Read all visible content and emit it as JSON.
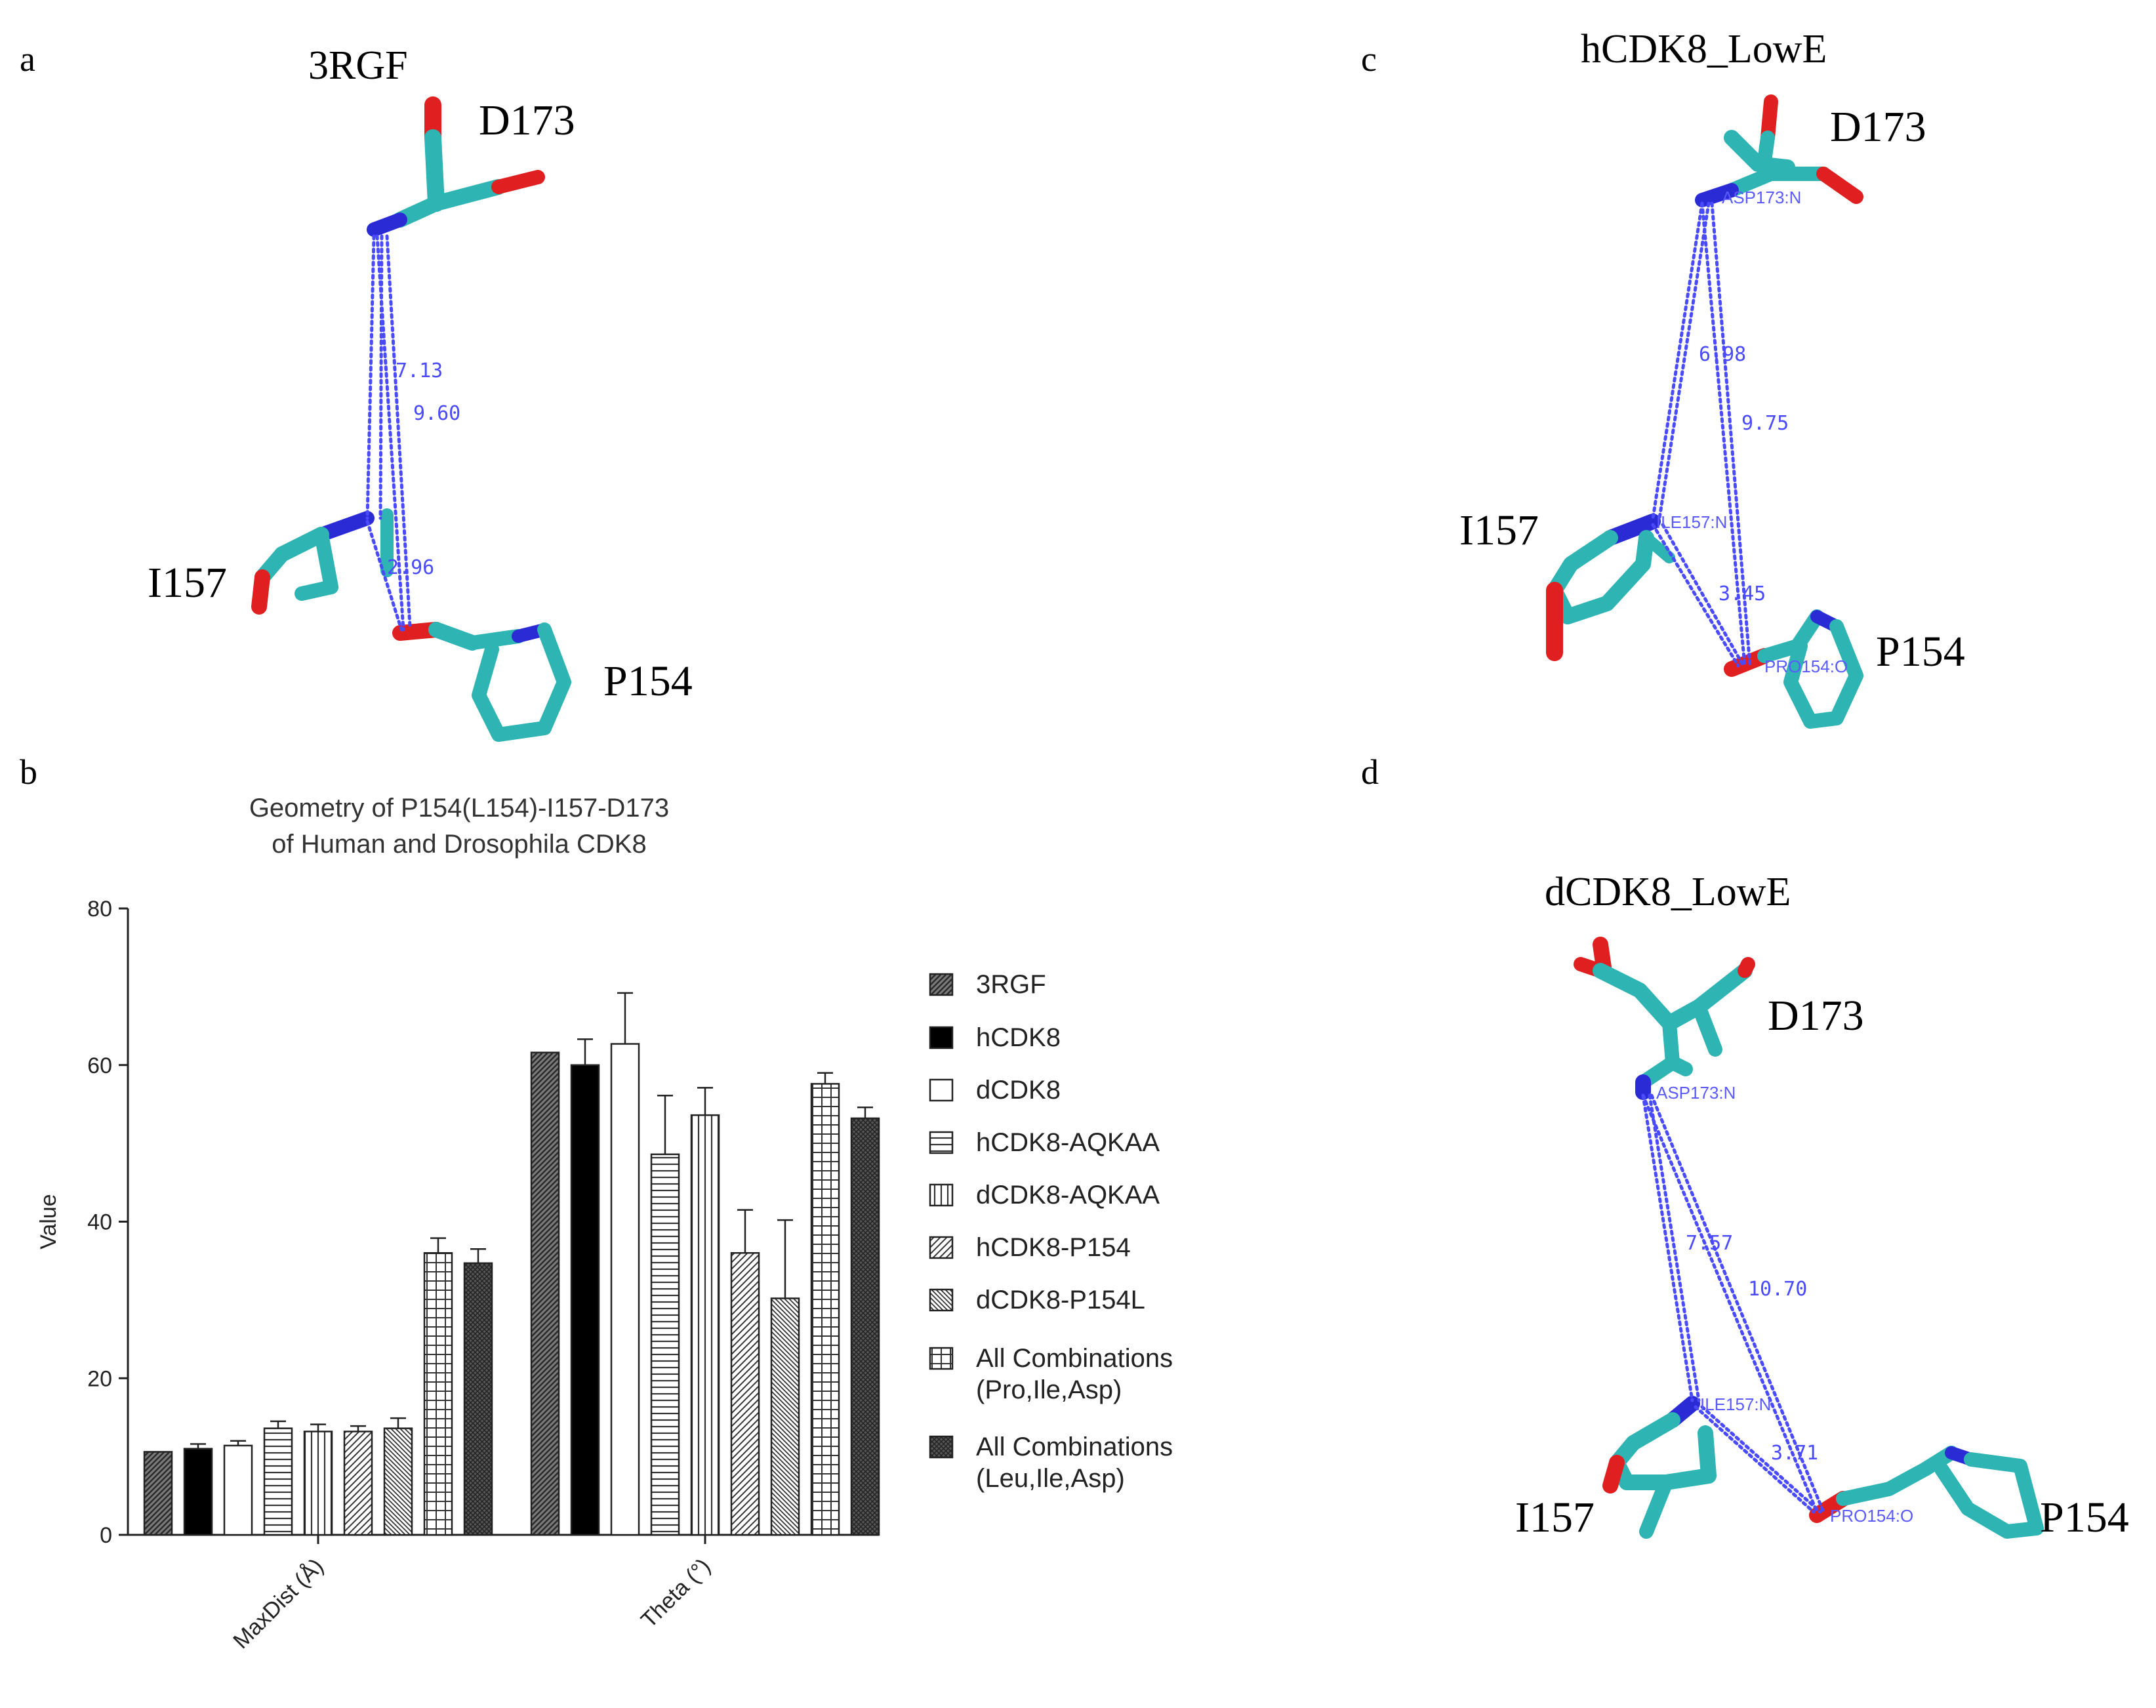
{
  "panels": {
    "a": {
      "letter": "a",
      "title": "3RGF",
      "residues": {
        "d173": "D173",
        "i157": "I157",
        "p154": "P154"
      },
      "distances": [
        "7.13",
        "9.60",
        "2.96"
      ]
    },
    "b": {
      "letter": "b"
    },
    "c": {
      "letter": "c",
      "title": "hCDK8_LowE",
      "residues": {
        "d173": "D173",
        "i157": "I157",
        "p154": "P154"
      },
      "distances": [
        "6.98",
        "9.75",
        "3.45"
      ],
      "atoms": [
        "ASP173:N",
        "ILE157:N",
        "PRO154:O"
      ]
    },
    "d": {
      "letter": "d",
      "title": "dCDK8_LowE",
      "residues": {
        "d173": "D173",
        "i157": "I157",
        "p154": "P154"
      },
      "distances": [
        "7.57",
        "10.70",
        "3.71"
      ],
      "atoms": [
        "ASP173:N",
        "ILE157:N",
        "PRO154:O"
      ]
    }
  },
  "colors": {
    "carbon": "#2fb4b4",
    "nitrogen": "#2b2bd6",
    "oxygen": "#e02020",
    "dash": "#4a4aff"
  },
  "chart_data": {
    "type": "bar",
    "title": "Geometry of P154(L154)-I157-D173",
    "subtitle": "of Human and Drosophila CDK8",
    "xlabel": "",
    "ylabel": "Value",
    "ylim": [
      0,
      80
    ],
    "yticks": [
      "0",
      "20",
      "40",
      "60",
      "80"
    ],
    "categories": [
      "MaxDist (Å)",
      "Theta (°)"
    ],
    "series": [
      {
        "name": "3RGF",
        "values": [
          10.6,
          61.6
        ],
        "errors": [
          0,
          0
        ],
        "pattern": "dark-diag"
      },
      {
        "name": "hCDK8",
        "values": [
          11.0,
          60.0
        ],
        "errors": [
          0.6,
          3.3
        ],
        "pattern": "black"
      },
      {
        "name": "dCDK8",
        "values": [
          11.4,
          62.7
        ],
        "errors": [
          0.6,
          6.5
        ],
        "pattern": "white"
      },
      {
        "name": "hCDK8-AQKAA",
        "values": [
          13.6,
          48.6
        ],
        "errors": [
          0.9,
          7.5
        ],
        "pattern": "hlines"
      },
      {
        "name": "dCDK8-AQKAA",
        "values": [
          13.2,
          53.6
        ],
        "errors": [
          0.9,
          3.5
        ],
        "pattern": "vlines"
      },
      {
        "name": "hCDK8-P154",
        "values": [
          13.2,
          36.0
        ],
        "errors": [
          0.7,
          5.5
        ],
        "pattern": "diag"
      },
      {
        "name": "dCDK8-P154L",
        "values": [
          13.6,
          30.2
        ],
        "errors": [
          1.3,
          10.0
        ],
        "pattern": "diag-dense"
      },
      {
        "name": "All Combinations",
        "name2": "(Pro,Ile,Asp)",
        "values": [
          36.0,
          57.6
        ],
        "errors": [
          1.9,
          1.4
        ],
        "pattern": "grid"
      },
      {
        "name": "All Combinations",
        "name2": "(Leu,Ile,Asp)",
        "values": [
          34.7,
          53.2
        ],
        "errors": [
          1.8,
          1.4
        ],
        "pattern": "dense-grid"
      }
    ]
  }
}
